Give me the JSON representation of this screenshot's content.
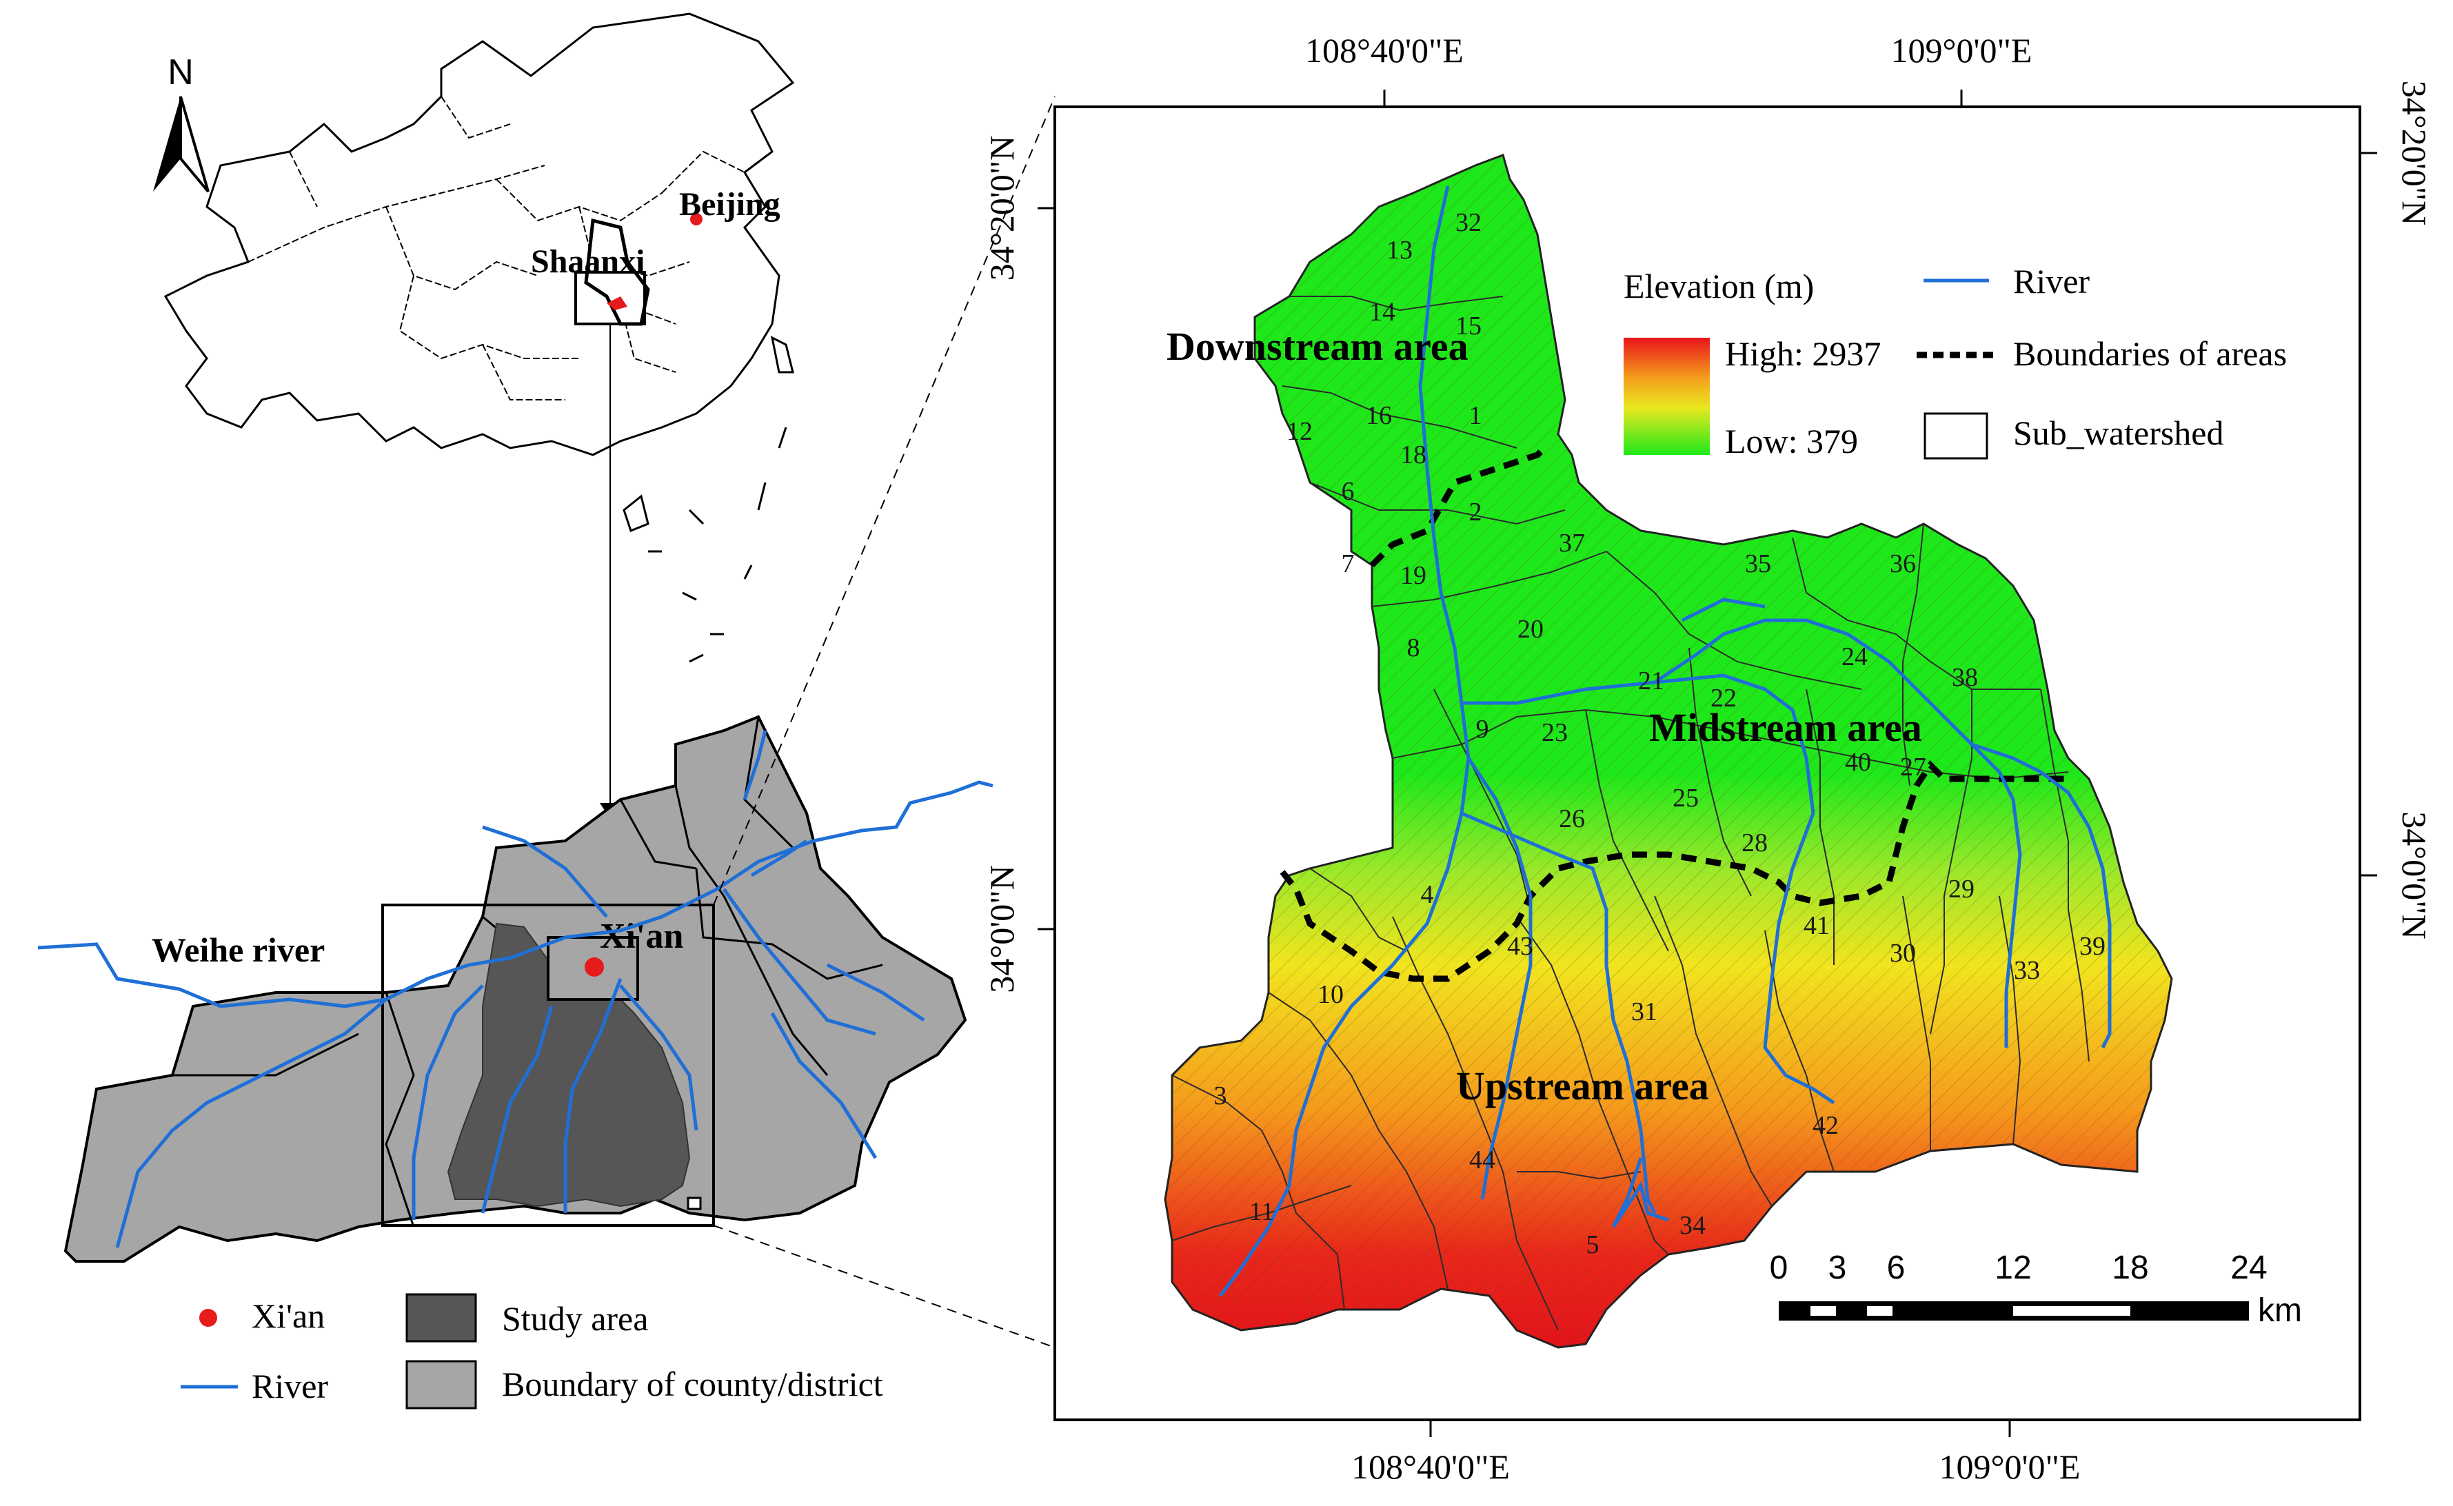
{
  "north": {
    "label": "N"
  },
  "china": {
    "beijing": "Beijing",
    "shaanxi": "Shaanxi"
  },
  "region": {
    "xian": "Xi'an",
    "weihe": "Weihe river"
  },
  "left_legend": {
    "xian": "Xi'an",
    "river": "River",
    "study_area": "Study area",
    "county": "Boundary of county/district"
  },
  "map": {
    "top_lon_1": "108°40'0\"E",
    "top_lon_2": "109°0'0\"E",
    "bottom_lon_1": "108°40'0\"E",
    "bottom_lon_2": "109°0'0\"E",
    "left_lat_1": "34°20'0\"N",
    "left_lat_2": "34°0'0\"N",
    "right_lat_1": "34°20'0\"N",
    "right_lat_2": "34°0'0\"N",
    "area_downstream": "Downstream area",
    "area_midstream": "Midstream area",
    "area_upstream": "Upstream area"
  },
  "legend": {
    "elevation_title": "Elevation (m)",
    "high": "High: 2937",
    "low": "Low: 379",
    "river": "River",
    "boundaries": "Boundaries of areas",
    "subwatershed": "Sub_watershed"
  },
  "scale": {
    "ticks": [
      "0",
      "3",
      "6",
      "12",
      "18",
      "24"
    ],
    "unit": "km"
  },
  "subwatersheds": [
    "1",
    "2",
    "3",
    "4",
    "5",
    "6",
    "7",
    "8",
    "9",
    "10",
    "11",
    "12",
    "13",
    "14",
    "15",
    "16",
    "18",
    "19",
    "20",
    "21",
    "22",
    "23",
    "24",
    "25",
    "26",
    "27",
    "28",
    "29",
    "30",
    "31",
    "32",
    "33",
    "34",
    "35",
    "36",
    "37",
    "38",
    "39",
    "40",
    "41",
    "42",
    "43",
    "44"
  ],
  "colors": {
    "high": "#e8141b",
    "mid": "#f5dc1e",
    "low": "#1fe81a",
    "river": "#1f6fd6",
    "study_area": "#555555",
    "county": "#a6a6a6",
    "xian_dot": "#e61b1b"
  }
}
